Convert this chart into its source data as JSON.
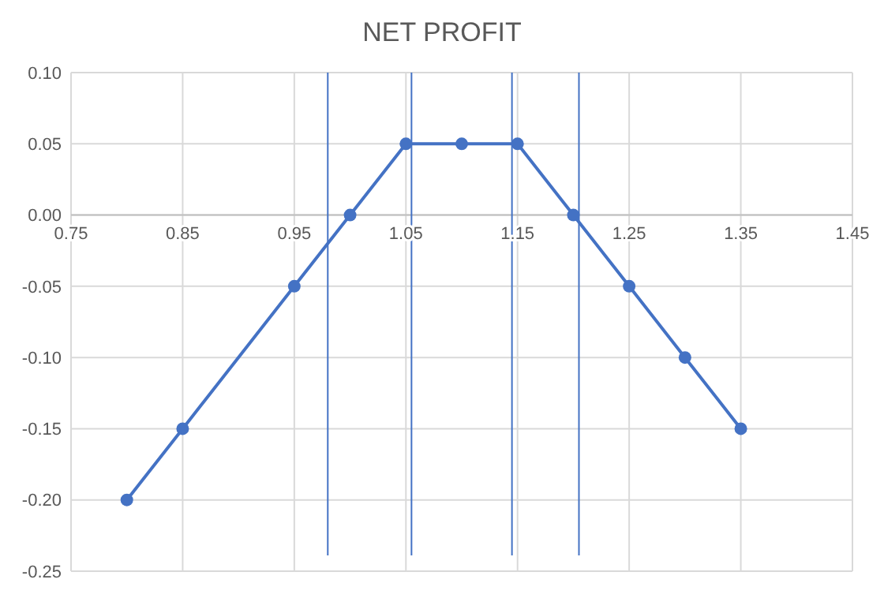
{
  "chart_data": {
    "type": "line",
    "title": "NET PROFIT",
    "x": [
      0.8,
      0.85,
      0.95,
      1.0,
      1.05,
      1.1,
      1.15,
      1.2,
      1.25,
      1.3,
      1.35
    ],
    "series": [
      {
        "color": "#4472c4",
        "values": [
          -0.2,
          -0.15,
          -0.05,
          0,
          0.05,
          0.05,
          0.05,
          0,
          -0.05,
          -0.1,
          -0.15
        ]
      }
    ],
    "xlim": [
      0.75,
      1.45
    ],
    "xticks": [
      0.75,
      0.85,
      0.95,
      1.05,
      1.15,
      1.25,
      1.35,
      1.45
    ],
    "ylim": [
      -0.25,
      0.1
    ],
    "yticks": [
      {
        "value": 0.1,
        "label": "0.10"
      },
      {
        "value": 0.05,
        "label": "0.05"
      },
      {
        "value": 0,
        "label": "0.00"
      },
      {
        "value": -0.05,
        "label": "-0.05"
      },
      {
        "value": -0.1,
        "label": "-0.10"
      },
      {
        "value": -0.15,
        "label": "-0.15"
      },
      {
        "value": -0.2,
        "label": "-0.20"
      },
      {
        "value": -0.25,
        "label": "-0.25"
      }
    ],
    "grid": true,
    "marker": "circle",
    "line_style": "solid",
    "ref_lines": [
      {
        "axis": "x",
        "value": 0.98,
        "color": "#4472c4"
      },
      {
        "axis": "x",
        "value": 1.055,
        "color": "#4472c4"
      },
      {
        "axis": "x",
        "value": 1.145,
        "color": "#4472c4"
      },
      {
        "axis": "x",
        "value": 1.205,
        "color": "#4472c4"
      }
    ]
  }
}
